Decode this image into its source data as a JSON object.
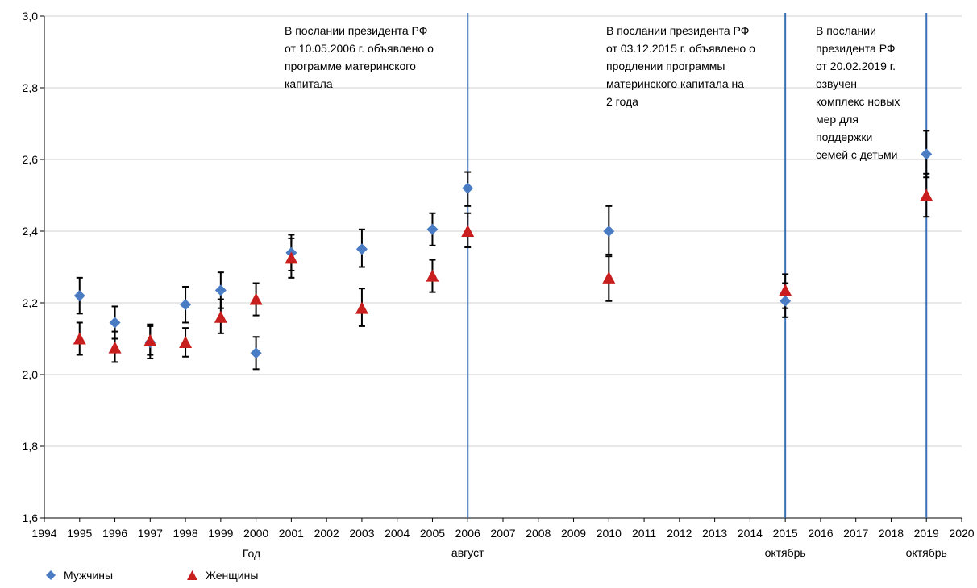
{
  "chart_data": {
    "type": "scatter",
    "xlabel": "Год",
    "ylim": [
      1.6,
      3.0
    ],
    "xlim": [
      1994,
      2020
    ],
    "yticks": [
      "1,6",
      "1,8",
      "2,0",
      "2,2",
      "2,4",
      "2,6",
      "2,8",
      "3,0"
    ],
    "xticks": [
      "1994",
      "1995",
      "1996",
      "1997",
      "1998",
      "1999",
      "2000",
      "2001",
      "2002",
      "2003",
      "2004",
      "2005",
      "2006",
      "2007",
      "2008",
      "2009",
      "2010",
      "2011",
      "2012",
      "2013",
      "2014",
      "2015",
      "2016",
      "2017",
      "2018",
      "2019",
      "2020"
    ],
    "grid": "horizontal",
    "colors": {
      "men": "#4a7cc4",
      "women": "#c81e1e",
      "vline": "#3a6fb5",
      "error": "#000000"
    },
    "series": [
      {
        "name": "Мужчины",
        "marker": "diamond",
        "points": [
          {
            "x": 1995,
            "y": 2.22,
            "lo": 2.17,
            "hi": 2.27
          },
          {
            "x": 1996,
            "y": 2.145,
            "lo": 2.1,
            "hi": 2.19
          },
          {
            "x": 1997,
            "y": 2.09,
            "lo": 2.045,
            "hi": 2.135
          },
          {
            "x": 1998,
            "y": 2.195,
            "lo": 2.145,
            "hi": 2.245
          },
          {
            "x": 1999,
            "y": 2.235,
            "lo": 2.185,
            "hi": 2.285
          },
          {
            "x": 2000,
            "y": 2.06,
            "lo": 2.015,
            "hi": 2.105
          },
          {
            "x": 2001,
            "y": 2.34,
            "lo": 2.29,
            "hi": 2.39
          },
          {
            "x": 2003,
            "y": 2.35,
            "lo": 2.3,
            "hi": 2.405
          },
          {
            "x": 2005,
            "y": 2.405,
            "lo": 2.36,
            "hi": 2.45
          },
          {
            "x": 2006,
            "y": 2.52,
            "lo": 2.47,
            "hi": 2.565
          },
          {
            "x": 2010,
            "y": 2.4,
            "lo": 2.335,
            "hi": 2.47
          },
          {
            "x": 2015,
            "y": 2.205,
            "lo": 2.16,
            "hi": 2.255
          },
          {
            "x": 2019,
            "y": 2.615,
            "lo": 2.55,
            "hi": 2.68
          }
        ]
      },
      {
        "name": "Женщины",
        "marker": "triangle",
        "points": [
          {
            "x": 1995,
            "y": 2.1,
            "lo": 2.055,
            "hi": 2.145
          },
          {
            "x": 1996,
            "y": 2.075,
            "lo": 2.035,
            "hi": 2.12
          },
          {
            "x": 1997,
            "y": 2.095,
            "lo": 2.055,
            "hi": 2.14
          },
          {
            "x": 1998,
            "y": 2.09,
            "lo": 2.05,
            "hi": 2.13
          },
          {
            "x": 1999,
            "y": 2.16,
            "lo": 2.115,
            "hi": 2.21
          },
          {
            "x": 2000,
            "y": 2.21,
            "lo": 2.165,
            "hi": 2.255
          },
          {
            "x": 2001,
            "y": 2.325,
            "lo": 2.27,
            "hi": 2.38
          },
          {
            "x": 2003,
            "y": 2.185,
            "lo": 2.135,
            "hi": 2.24
          },
          {
            "x": 2005,
            "y": 2.275,
            "lo": 2.23,
            "hi": 2.32
          },
          {
            "x": 2006,
            "y": 2.4,
            "lo": 2.355,
            "hi": 2.45
          },
          {
            "x": 2010,
            "y": 2.27,
            "lo": 2.205,
            "hi": 2.33
          },
          {
            "x": 2015,
            "y": 2.235,
            "lo": 2.185,
            "hi": 2.28
          },
          {
            "x": 2019,
            "y": 2.5,
            "lo": 2.44,
            "hi": 2.56
          }
        ]
      }
    ],
    "vlines": [
      {
        "x": 2006,
        "sublabel": "август",
        "text": [
          "В послании   президента РФ",
          "от 10.05.2006 г. объявлено о",
          "программе материнского",
          "капитала"
        ]
      },
      {
        "x": 2015,
        "sublabel": "октябрь",
        "text": [
          "В послании президента РФ",
          "от 03.12.2015 г.  объявлено о",
          "продлении программы",
          "материнского капитала на",
          "2 года"
        ]
      },
      {
        "x": 2019,
        "sublabel": "октябрь",
        "text": [
          "В послании",
          "президента РФ",
          "от 20.02.2019  г.",
          "озвучен",
          "комплекс новых",
          "мер для",
          "поддержки",
          "семей с детьми"
        ]
      }
    ]
  }
}
